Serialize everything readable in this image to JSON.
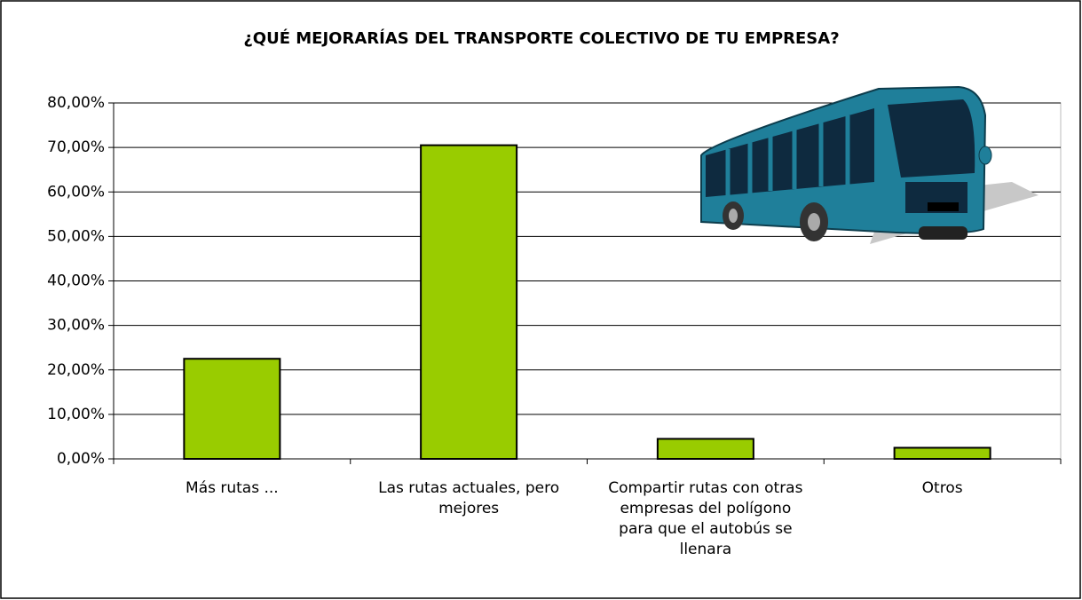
{
  "chart_data": {
    "type": "bar",
    "title": "¿QUÉ MEJORARÍAS DEL TRANSPORTE COLECTIVO DE TU EMPRESA?",
    "categories": [
      "Más rutas ...",
      "Las rutas actuales, pero mejores",
      "Compartir rutas con otras empresas del polígono para que el autobús se llenara",
      "Otros"
    ],
    "values": [
      22.5,
      70.5,
      4.5,
      2.5
    ],
    "color": "#99cc00",
    "ylim": [
      0,
      80
    ],
    "yticks": [
      {
        "value": 0,
        "label": "0,00%"
      },
      {
        "value": 10,
        "label": "10,00%"
      },
      {
        "value": 20,
        "label": "20,00%"
      },
      {
        "value": 30,
        "label": "30,00%"
      },
      {
        "value": 40,
        "label": "40,00%"
      },
      {
        "value": 50,
        "label": "50,00%"
      },
      {
        "value": 60,
        "label": "60,00%"
      },
      {
        "value": 70,
        "label": "70,00%"
      },
      {
        "value": 80,
        "label": "80,00%"
      }
    ],
    "grid": true
  }
}
